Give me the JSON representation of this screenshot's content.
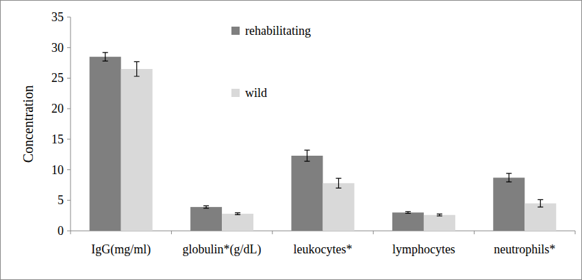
{
  "chart_data": {
    "type": "bar",
    "y_label": "Concentration",
    "categories": [
      "IgG(mg/ml)",
      "globulin*(g/dL)",
      "leukocytes*",
      "lymphocytes",
      "neutrophils*"
    ],
    "series": [
      {
        "name": "rehabilitating",
        "color": "#7f7f7f",
        "values": [
          28.5,
          3.9,
          12.3,
          3.0,
          8.7
        ],
        "errors": [
          0.7,
          0.2,
          0.9,
          0.15,
          0.7
        ]
      },
      {
        "name": "wild",
        "color": "#d9d9d9",
        "values": [
          26.5,
          2.8,
          7.8,
          2.6,
          4.5
        ],
        "errors": [
          1.2,
          0.15,
          0.8,
          0.15,
          0.6
        ]
      }
    ],
    "ylim": [
      0,
      35
    ],
    "yticks": [
      0,
      5,
      10,
      15,
      20,
      25,
      30,
      35
    ],
    "grid": false,
    "legend": "top"
  }
}
